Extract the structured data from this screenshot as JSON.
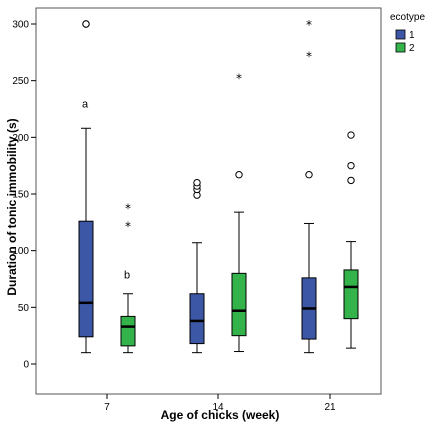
{
  "chart_data": {
    "type": "box",
    "xlabel": "Age of chicks (week)",
    "ylabel": "Duration of tonic immobility (s)",
    "ylim": [
      0,
      300
    ],
    "yticks": [
      0,
      50,
      100,
      150,
      200,
      250,
      300
    ],
    "categories": [
      "7",
      "14",
      "21"
    ],
    "grid": false,
    "legend": {
      "title": "ecotype",
      "position": "top-right",
      "entries": [
        "1",
        "2"
      ]
    },
    "series": [
      {
        "name": "1",
        "color": "#3c57a6",
        "boxes": [
          {
            "category": "7",
            "whisker_low": 10,
            "q1": 24,
            "median": 54,
            "q3": 126,
            "whisker_high": 208,
            "outliers": [
              300,
              300
            ],
            "extremes": [],
            "annotation": "a"
          },
          {
            "category": "14",
            "whisker_low": 10,
            "q1": 18,
            "median": 38,
            "q3": 62,
            "whisker_high": 107,
            "outliers": [
              149,
              154,
              157,
              160
            ],
            "extremes": [],
            "annotation": ""
          },
          {
            "category": "21",
            "whisker_low": 10,
            "q1": 22,
            "median": 49,
            "q3": 76,
            "whisker_high": 124,
            "outliers": [
              167
            ],
            "extremes": [
              272,
              300
            ],
            "annotation": ""
          }
        ]
      },
      {
        "name": "2",
        "color": "#33b34a",
        "boxes": [
          {
            "category": "7",
            "whisker_low": 10,
            "q1": 16,
            "median": 33,
            "q3": 42,
            "whisker_high": 62,
            "outliers": [],
            "extremes": [
              122,
              138
            ],
            "annotation": "b"
          },
          {
            "category": "14",
            "whisker_low": 11,
            "q1": 25,
            "median": 47,
            "q3": 80,
            "whisker_high": 134,
            "outliers": [
              167
            ],
            "extremes": [
              253
            ],
            "annotation": ""
          },
          {
            "category": "21",
            "whisker_low": 14,
            "q1": 40,
            "median": 68,
            "q3": 83,
            "whisker_high": 108,
            "outliers": [
              162,
              175,
              202
            ],
            "extremes": [],
            "annotation": ""
          }
        ]
      }
    ]
  }
}
